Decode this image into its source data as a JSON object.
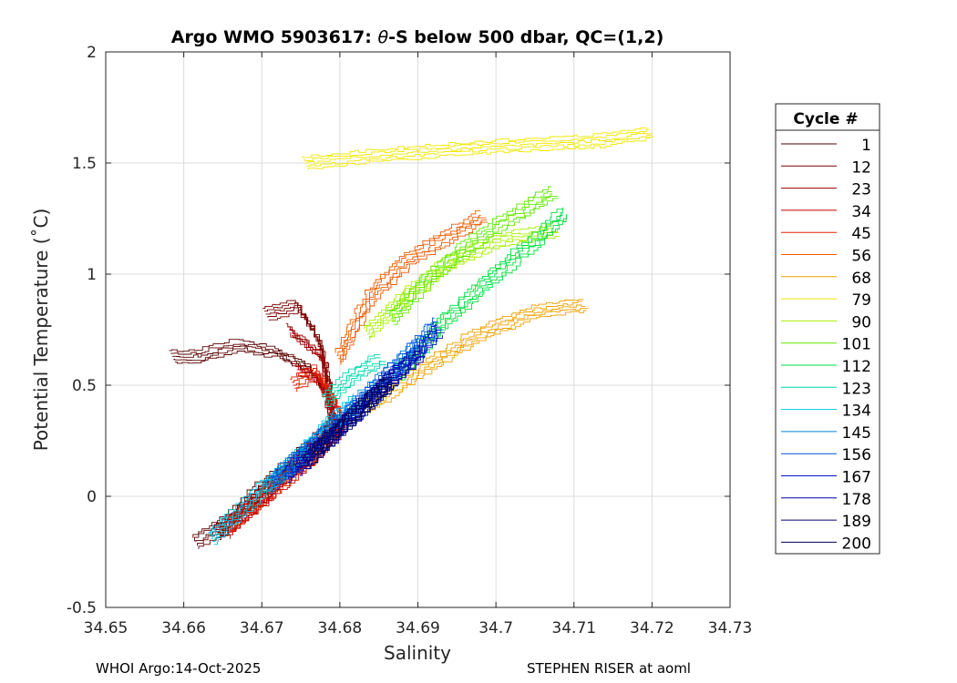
{
  "chart_data": {
    "type": "line",
    "title_prefix": "Argo WMO 5903617: ",
    "title_theta": "θ",
    "title_suffix": "-S below 500 dbar,  QC=(1,2)",
    "xlabel": "Salinity",
    "ylabel": "Potential Temperature (˚C)",
    "xlim": [
      34.65,
      34.73
    ],
    "ylim": [
      -0.5,
      2
    ],
    "xticks": [
      34.65,
      34.66,
      34.67,
      34.68,
      34.69,
      34.7,
      34.71,
      34.72,
      34.73
    ],
    "xtick_labels": [
      "34.65",
      "34.66",
      "34.67",
      "34.68",
      "34.69",
      "34.7",
      "34.71",
      "34.72",
      "34.73"
    ],
    "yticks": [
      -0.5,
      0,
      0.5,
      1,
      1.5,
      2
    ],
    "ytick_labels": [
      "-0.5",
      "0",
      "0.5",
      "1",
      "1.5",
      "2"
    ],
    "grid": true,
    "legend_title": "Cycle #",
    "legend_position": "right",
    "series": [
      {
        "name": "1",
        "color": "#5a0000",
        "points": [
          [
            34.6585,
            0.63
          ],
          [
            34.662,
            0.63
          ],
          [
            34.667,
            0.68
          ],
          [
            34.6715,
            0.65
          ],
          [
            34.676,
            0.58
          ],
          [
            34.6785,
            0.45
          ],
          [
            34.6792,
            0.3
          ],
          [
            34.675,
            0.18
          ],
          [
            34.67,
            0.03
          ],
          [
            34.6655,
            -0.12
          ],
          [
            34.6615,
            -0.21
          ]
        ]
      },
      {
        "name": "12",
        "color": "#7a0000",
        "points": [
          [
            34.6705,
            0.82
          ],
          [
            34.6745,
            0.86
          ],
          [
            34.6775,
            0.7
          ],
          [
            34.6785,
            0.5
          ],
          [
            34.6792,
            0.33
          ],
          [
            34.6745,
            0.15
          ],
          [
            34.6685,
            -0.04
          ],
          [
            34.664,
            -0.18
          ]
        ]
      },
      {
        "name": "23",
        "color": "#9a0000",
        "points": [
          [
            34.6735,
            0.75
          ],
          [
            34.678,
            0.62
          ],
          [
            34.6788,
            0.42
          ],
          [
            34.6795,
            0.31
          ],
          [
            34.675,
            0.16
          ],
          [
            34.669,
            -0.03
          ],
          [
            34.6645,
            -0.17
          ]
        ]
      },
      {
        "name": "34",
        "color": "#c00000",
        "points": [
          [
            34.6745,
            0.57
          ],
          [
            34.6775,
            0.52
          ],
          [
            34.6788,
            0.4
          ],
          [
            34.68,
            0.3
          ],
          [
            34.676,
            0.17
          ],
          [
            34.67,
            -0.02
          ],
          [
            34.665,
            -0.16
          ]
        ]
      },
      {
        "name": "45",
        "color": "#e02000",
        "points": [
          [
            34.674,
            0.5
          ],
          [
            34.677,
            0.56
          ],
          [
            34.679,
            0.46
          ],
          [
            34.6805,
            0.34
          ],
          [
            34.677,
            0.2
          ],
          [
            34.6705,
            0.0
          ],
          [
            34.6655,
            -0.15
          ]
        ]
      },
      {
        "name": "56",
        "color": "#f05a00",
        "points": [
          [
            34.6798,
            0.62
          ],
          [
            34.684,
            0.9
          ],
          [
            34.689,
            1.07
          ],
          [
            34.694,
            1.17
          ],
          [
            34.6985,
            1.26
          ]
        ]
      },
      {
        "name": "68",
        "color": "#f0a000",
        "points": [
          [
            34.6835,
            0.4
          ],
          [
            34.691,
            0.58
          ],
          [
            34.698,
            0.73
          ],
          [
            34.705,
            0.83
          ],
          [
            34.7115,
            0.86
          ]
        ]
      },
      {
        "name": "79",
        "color": "#f0e800",
        "points": [
          [
            34.6755,
            1.5
          ],
          [
            34.684,
            1.53
          ],
          [
            34.694,
            1.56
          ],
          [
            34.703,
            1.58
          ],
          [
            34.7135,
            1.6
          ],
          [
            34.72,
            1.64
          ]
        ]
      },
      {
        "name": "90",
        "color": "#a8f000",
        "points": [
          [
            34.6835,
            0.73
          ],
          [
            34.689,
            0.92
          ],
          [
            34.6945,
            1.06
          ],
          [
            34.7005,
            1.15
          ],
          [
            34.708,
            1.2
          ]
        ]
      },
      {
        "name": "101",
        "color": "#60e800",
        "points": [
          [
            34.6865,
            0.8
          ],
          [
            34.692,
            1.0
          ],
          [
            34.6975,
            1.15
          ],
          [
            34.703,
            1.28
          ],
          [
            34.7075,
            1.37
          ]
        ]
      },
      {
        "name": "112",
        "color": "#00e040",
        "points": [
          [
            34.6875,
            0.55
          ],
          [
            34.693,
            0.77
          ],
          [
            34.699,
            0.97
          ],
          [
            34.7045,
            1.13
          ],
          [
            34.709,
            1.28
          ]
        ]
      },
      {
        "name": "123",
        "color": "#00d8b0",
        "points": [
          [
            34.678,
            0.43
          ],
          [
            34.682,
            0.55
          ],
          [
            34.6855,
            0.62
          ]
        ]
      },
      {
        "name": "134",
        "color": "#00c8e8",
        "points": [
          [
            34.6635,
            -0.19
          ],
          [
            34.668,
            -0.04
          ],
          [
            34.6735,
            0.14
          ],
          [
            34.6785,
            0.31
          ],
          [
            34.6825,
            0.44
          ]
        ]
      },
      {
        "name": "145",
        "color": "#0088d8",
        "points": [
          [
            34.6705,
            0.04
          ],
          [
            34.6755,
            0.2
          ],
          [
            34.681,
            0.38
          ],
          [
            34.6865,
            0.56
          ],
          [
            34.691,
            0.7
          ]
        ]
      },
      {
        "name": "156",
        "color": "#0050e0",
        "points": [
          [
            34.6715,
            0.06
          ],
          [
            34.677,
            0.24
          ],
          [
            34.683,
            0.43
          ],
          [
            34.6885,
            0.62
          ],
          [
            34.6925,
            0.78
          ]
        ]
      },
      {
        "name": "167",
        "color": "#0018c0",
        "points": [
          [
            34.673,
            0.09
          ],
          [
            34.679,
            0.28
          ],
          [
            34.685,
            0.47
          ],
          [
            34.6895,
            0.62
          ],
          [
            34.693,
            0.76
          ]
        ]
      },
      {
        "name": "178",
        "color": "#0000a0",
        "points": [
          [
            34.6745,
            0.12
          ],
          [
            34.6805,
            0.32
          ],
          [
            34.6855,
            0.5
          ],
          [
            34.691,
            0.66
          ]
        ]
      },
      {
        "name": "189",
        "color": "#000078",
        "points": [
          [
            34.6755,
            0.15
          ],
          [
            34.6815,
            0.35
          ],
          [
            34.687,
            0.53
          ]
        ]
      },
      {
        "name": "200",
        "color": "#000050",
        "points": [
          [
            34.6765,
            0.18
          ],
          [
            34.682,
            0.38
          ],
          [
            34.6865,
            0.52
          ]
        ]
      }
    ]
  },
  "footer": {
    "left": "WHOI Argo:14-Oct-2025",
    "right": "STEPHEN RISER at aoml"
  }
}
